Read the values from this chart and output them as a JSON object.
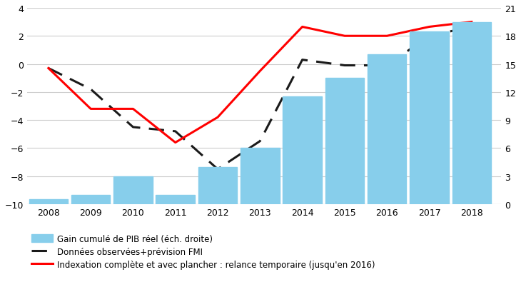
{
  "years": [
    2008,
    2009,
    2010,
    2011,
    2012,
    2013,
    2014,
    2015,
    2016,
    2017,
    2018
  ],
  "bar_values_right": [
    0.5,
    1.0,
    3.0,
    1.0,
    4.0,
    6.0,
    11.5,
    13.5,
    16.0,
    18.5,
    19.5
  ],
  "dashed_line_left": [
    -0.3,
    -1.8,
    -4.5,
    -4.8,
    -7.5,
    -5.5,
    0.3,
    -0.1,
    -0.1,
    2.0,
    2.65
  ],
  "red_line_left": [
    -0.3,
    -3.2,
    -3.2,
    -5.6,
    -3.8,
    -0.5,
    2.65,
    2.0,
    2.0,
    2.65,
    3.0
  ],
  "bar_color": "#87CEEB",
  "bar_edgecolor": "#87CEEB",
  "dashed_color": "#1a1a1a",
  "red_color": "#ff0000",
  "background_color": "#ffffff",
  "grid_color": "#cccccc",
  "ylim_left": [
    -10,
    4
  ],
  "ylim_right": [
    0,
    21
  ],
  "yticks_left": [
    -10,
    -8,
    -6,
    -4,
    -2,
    0,
    2,
    4
  ],
  "yticks_right": [
    0,
    3,
    6,
    9,
    12,
    15,
    18,
    21
  ],
  "legend_bar": "Gain cumulé de PIB réel (éch. droite)",
  "legend_dashed": "Données observées+prévision FMI",
  "legend_red": "Indexation complète et avec plancher : relance temporaire (jusqu'en 2016)"
}
